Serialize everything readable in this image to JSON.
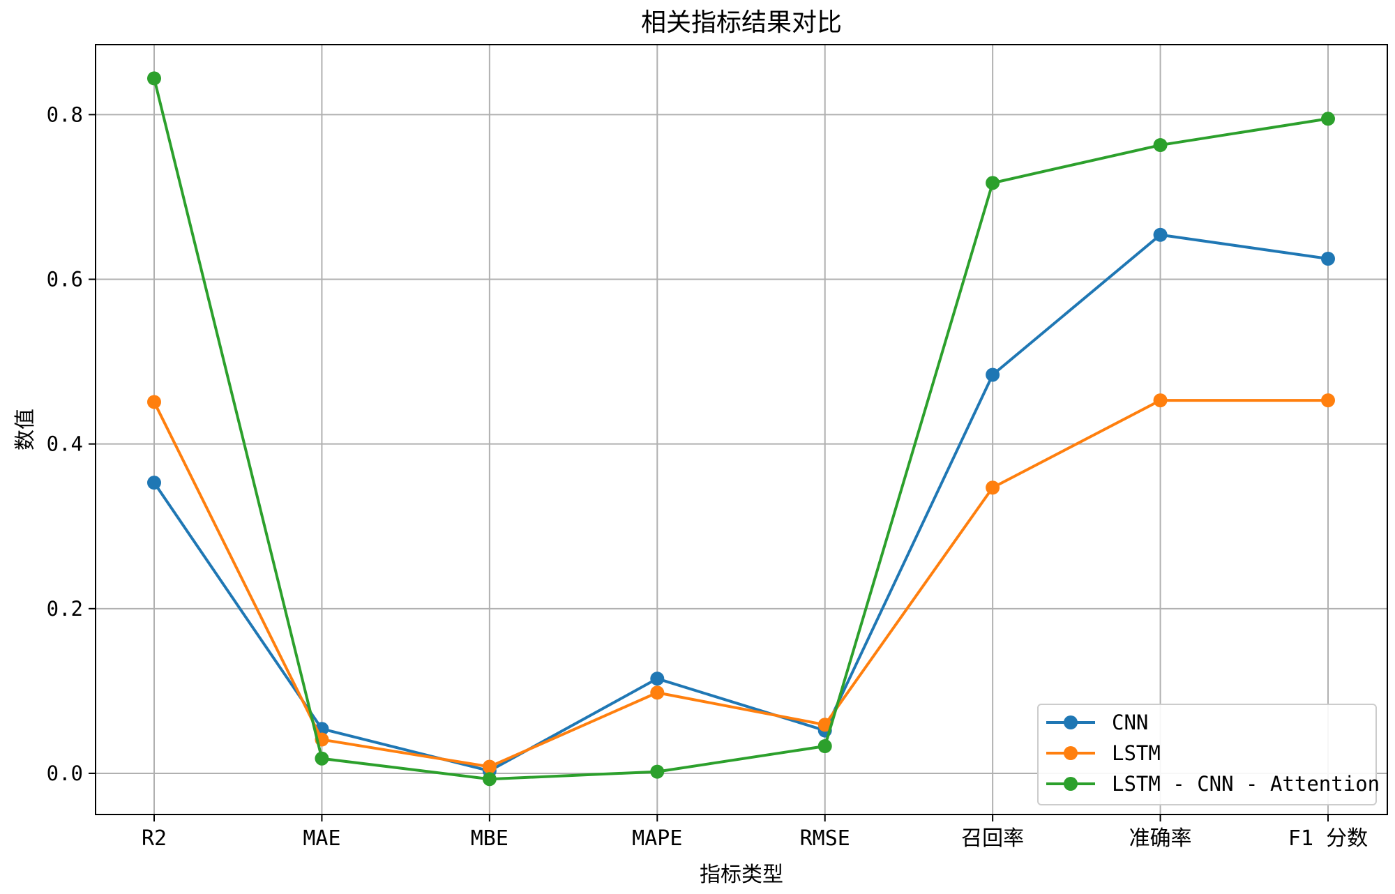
{
  "chart_data": {
    "type": "line",
    "title": "相关指标结果对比",
    "xlabel": "指标类型",
    "ylabel": "数值",
    "categories": [
      "R2",
      "MAE",
      "MBE",
      "MAPE",
      "RMSE",
      "召回率",
      "准确率",
      "F1 分数"
    ],
    "ylim": [
      -0.05,
      0.885
    ],
    "yticks": [
      0.0,
      0.2,
      0.4,
      0.6,
      0.8
    ],
    "ytick_labels": [
      "0.0",
      "0.2",
      "0.4",
      "0.6",
      "0.8"
    ],
    "grid": true,
    "legend_position": "lower-right",
    "series": [
      {
        "name": "CNN",
        "color": "#1f77b4",
        "values": [
          0.353,
          0.054,
          0.003,
          0.115,
          0.052,
          0.484,
          0.654,
          0.625
        ]
      },
      {
        "name": "LSTM",
        "color": "#ff7f0e",
        "values": [
          0.451,
          0.041,
          0.008,
          0.098,
          0.059,
          0.347,
          0.453,
          0.453
        ]
      },
      {
        "name": "LSTM - CNN - Attention",
        "color": "#2ca02c",
        "values": [
          0.844,
          0.018,
          -0.007,
          0.002,
          0.033,
          0.717,
          0.763,
          0.795
        ]
      }
    ]
  }
}
